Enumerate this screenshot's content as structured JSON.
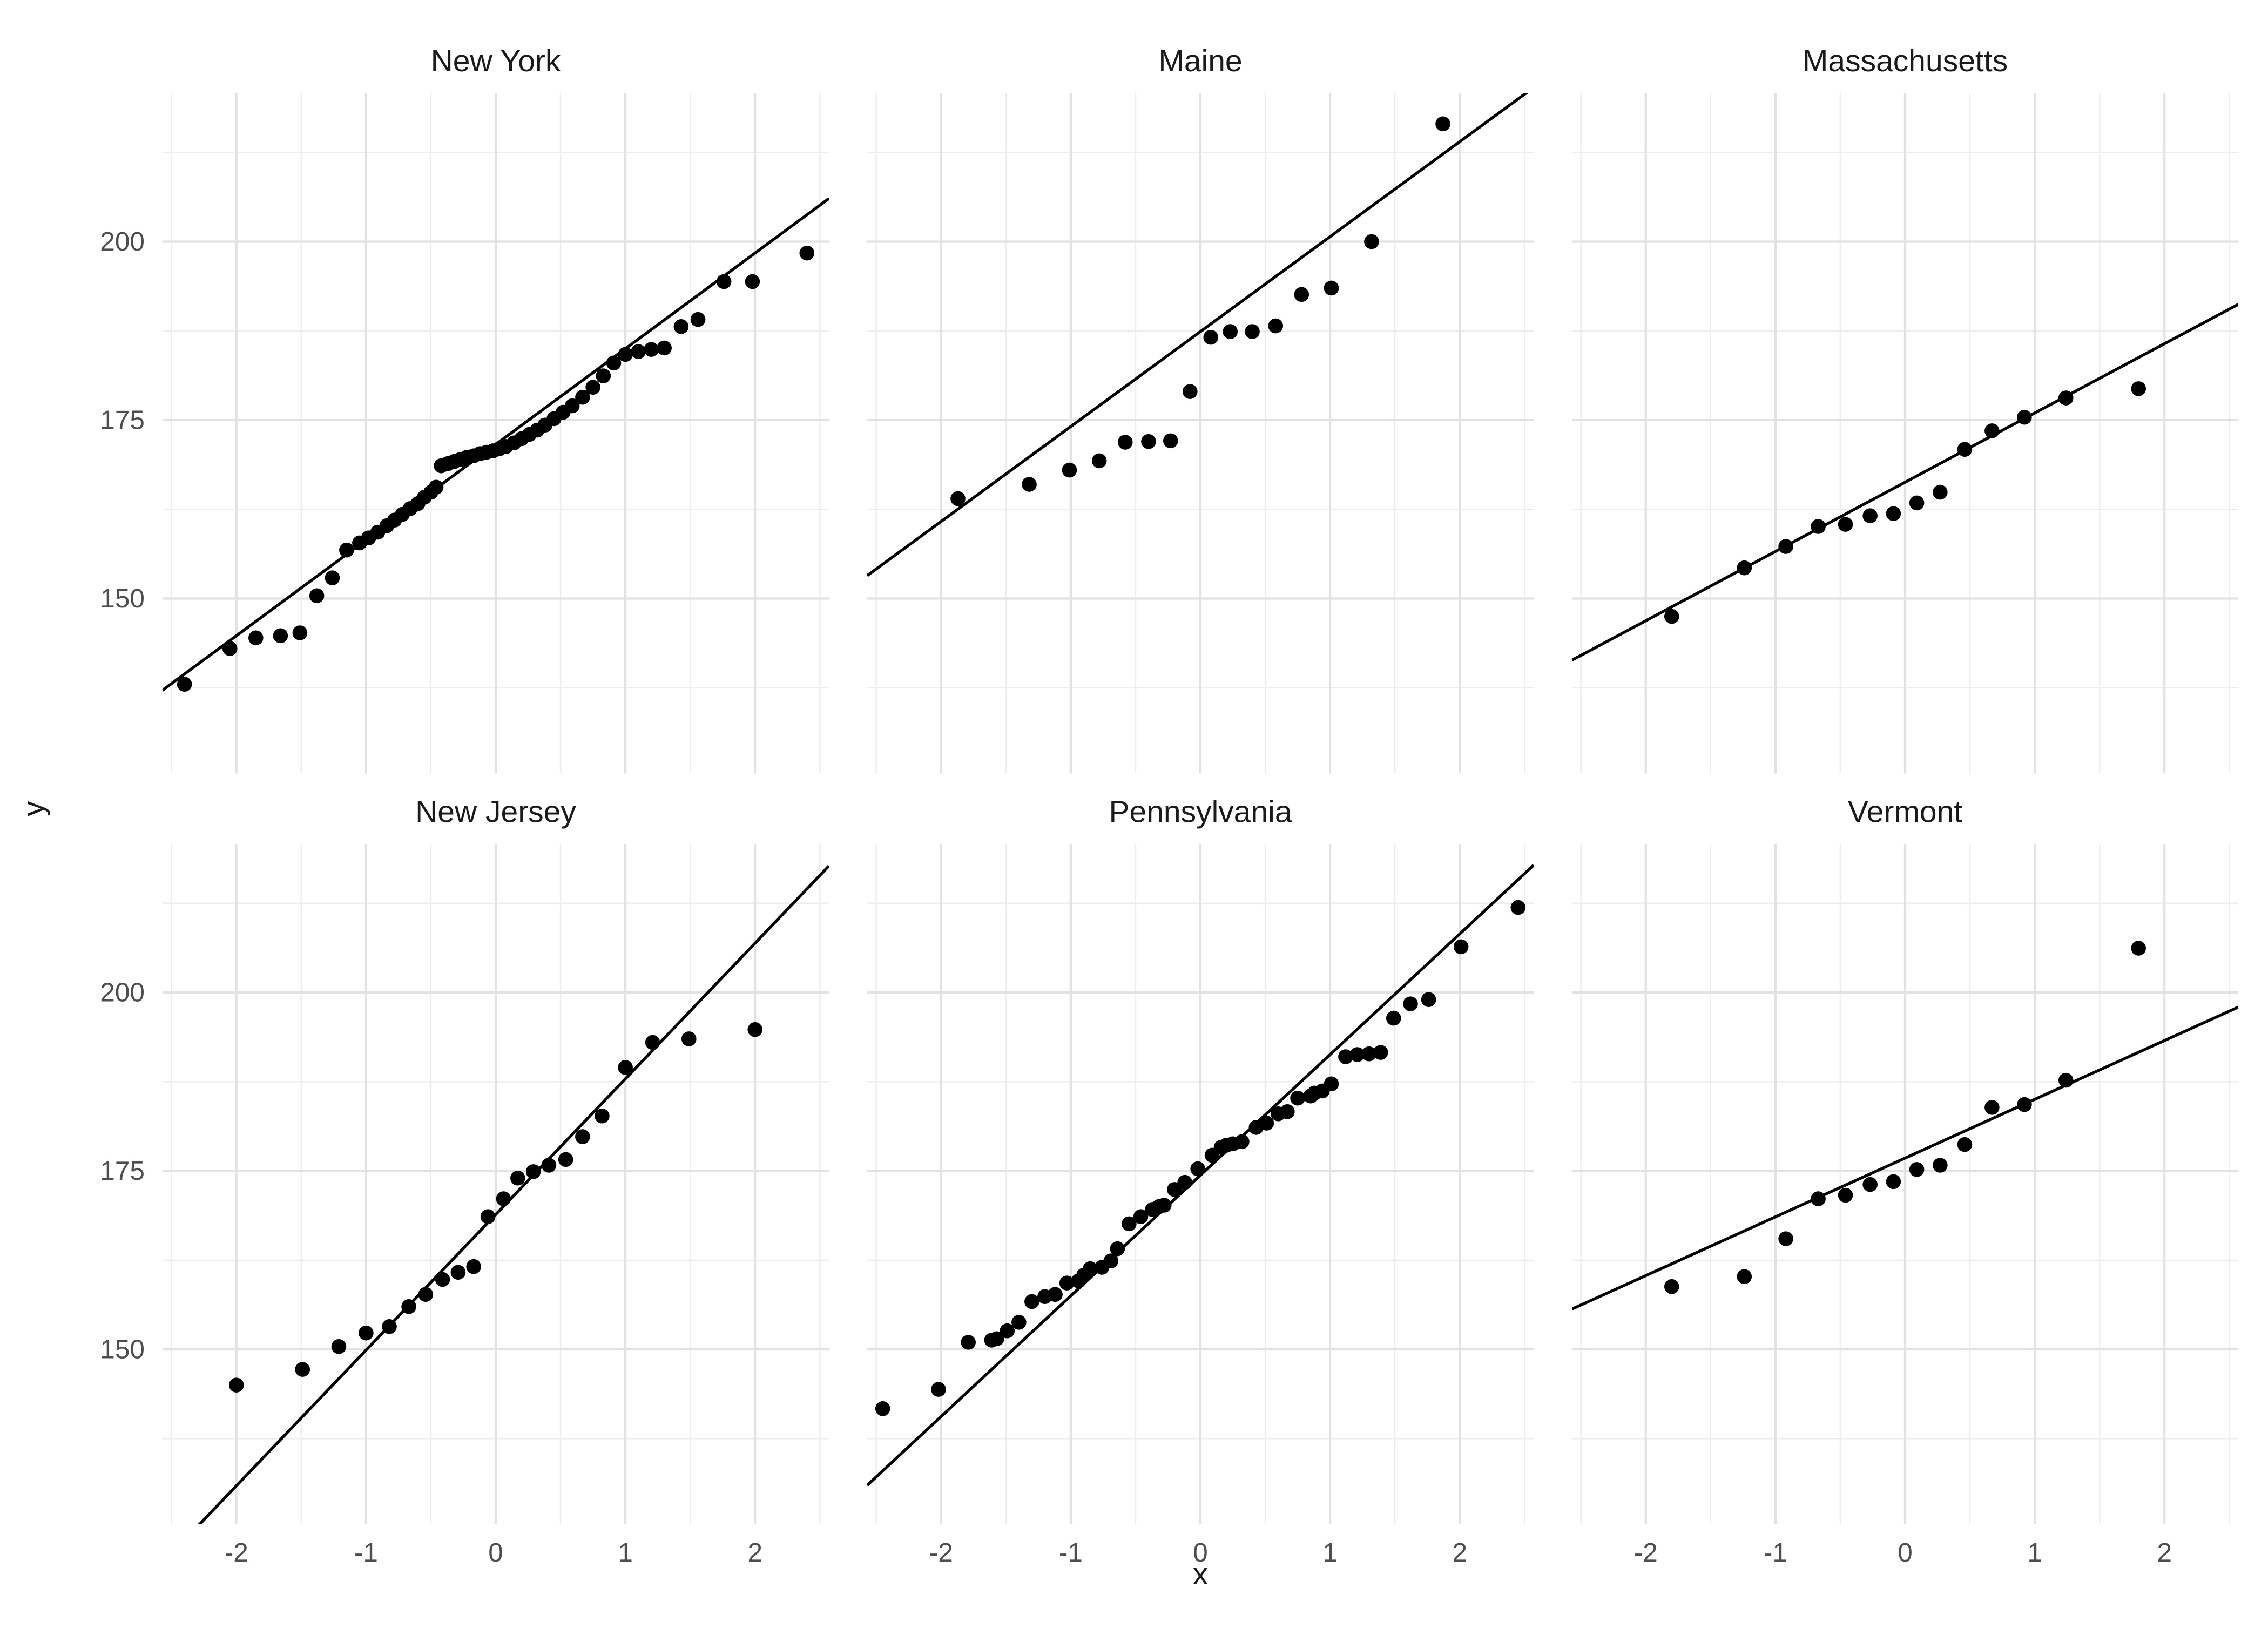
{
  "figure": {
    "background": "#FFFFFF",
    "kind": "faceted QQ scatter plots, 3 columns x 2 rows"
  },
  "axis": {
    "x_label": "x",
    "y_label": "y",
    "x_tick_labels": [
      "-2",
      "-1",
      "0",
      "1",
      "2"
    ],
    "x_ticks": [
      -2,
      -1,
      0,
      1,
      2
    ],
    "x_minor_ticks": [
      -2.5,
      -1.5,
      -0.5,
      0.5,
      1.5,
      2.5
    ],
    "y_tick_labels": [
      "150",
      "175",
      "200"
    ],
    "y_ticks": [
      150,
      175,
      200
    ],
    "y_minor_ticks": [
      137.5,
      162.5,
      187.5,
      212.5
    ],
    "x_domain": [
      -2.57,
      2.57
    ],
    "y_domain": [
      125.5,
      220.8
    ],
    "tick_color": "#4D4D4D",
    "title_color": "#1A1A1A",
    "grid": "on"
  },
  "style": {
    "point_color": "#000000",
    "point_radius": 4.6,
    "line_color": "#000000",
    "line_width": 1.8,
    "grid_major_color": "#E2E2E2",
    "grid_minor_color": "#EDEDED",
    "grid_major_width": 1.4,
    "grid_minor_width": 0.8,
    "panel_bg": "#FFFFFF"
  },
  "chart_data": [
    {
      "type": "scatter",
      "title": "New York",
      "row": 0,
      "col": 0,
      "legend_position": "none",
      "line": {
        "slope": 13.4,
        "intercept": 171.6
      },
      "points": [
        [
          -2.4,
          138.0
        ],
        [
          -2.05,
          143.0
        ],
        [
          -1.85,
          144.5
        ],
        [
          -1.66,
          144.8
        ],
        [
          -1.51,
          145.2
        ],
        [
          -1.38,
          150.4
        ],
        [
          -1.26,
          152.9
        ],
        [
          -1.15,
          156.8
        ],
        [
          -1.05,
          157.8
        ],
        [
          -0.98,
          158.5
        ],
        [
          -0.91,
          159.3
        ],
        [
          -0.84,
          160.2
        ],
        [
          -0.78,
          161.0
        ],
        [
          -0.72,
          161.8
        ],
        [
          -0.66,
          162.6
        ],
        [
          -0.6,
          163.3
        ],
        [
          -0.55,
          164.2
        ],
        [
          -0.5,
          164.9
        ],
        [
          -0.46,
          165.6
        ],
        [
          -0.42,
          168.6
        ],
        [
          -0.37,
          168.9
        ],
        [
          -0.32,
          169.2
        ],
        [
          -0.27,
          169.5
        ],
        [
          -0.22,
          169.8
        ],
        [
          -0.17,
          170.0
        ],
        [
          -0.12,
          170.3
        ],
        [
          -0.07,
          170.5
        ],
        [
          -0.02,
          170.7
        ],
        [
          0.03,
          171.0
        ],
        [
          0.08,
          171.3
        ],
        [
          0.14,
          171.8
        ],
        [
          0.2,
          172.4
        ],
        [
          0.26,
          173.0
        ],
        [
          0.32,
          173.6
        ],
        [
          0.38,
          174.3
        ],
        [
          0.45,
          175.2
        ],
        [
          0.52,
          176.1
        ],
        [
          0.59,
          177.0
        ],
        [
          0.67,
          178.2
        ],
        [
          0.75,
          179.6
        ],
        [
          0.83,
          181.2
        ],
        [
          0.91,
          183.0
        ],
        [
          1.0,
          184.2
        ],
        [
          1.1,
          184.6
        ],
        [
          1.2,
          184.9
        ],
        [
          1.3,
          185.1
        ],
        [
          1.43,
          188.1
        ],
        [
          1.56,
          189.1
        ],
        [
          1.76,
          194.4
        ],
        [
          1.98,
          194.4
        ],
        [
          2.4,
          198.4
        ]
      ]
    },
    {
      "type": "scatter",
      "title": "Maine",
      "row": 0,
      "col": 1,
      "legend_position": "none",
      "line": {
        "slope": 13.3,
        "intercept": 187.4
      },
      "points": [
        [
          -1.87,
          164.0
        ],
        [
          -1.32,
          166.0
        ],
        [
          -1.01,
          168.0
        ],
        [
          -0.78,
          169.3
        ],
        [
          -0.58,
          171.9
        ],
        [
          -0.4,
          172.0
        ],
        [
          -0.23,
          172.1
        ],
        [
          -0.08,
          179.0
        ],
        [
          0.08,
          186.6
        ],
        [
          0.23,
          187.4
        ],
        [
          0.4,
          187.4
        ],
        [
          0.58,
          188.2
        ],
        [
          0.78,
          192.6
        ],
        [
          1.01,
          193.5
        ],
        [
          1.32,
          200.0
        ],
        [
          1.87,
          216.5
        ]
      ]
    },
    {
      "type": "scatter",
      "title": "Massachusetts",
      "row": 0,
      "col": 2,
      "legend_position": "none",
      "line": {
        "slope": 9.7,
        "intercept": 166.3
      },
      "points": [
        [
          -1.8,
          147.5
        ],
        [
          -1.24,
          154.3
        ],
        [
          -0.92,
          157.3
        ],
        [
          -0.67,
          160.1
        ],
        [
          -0.46,
          160.4
        ],
        [
          -0.27,
          161.6
        ],
        [
          -0.09,
          161.9
        ],
        [
          0.09,
          163.4
        ],
        [
          0.27,
          164.9
        ],
        [
          0.46,
          170.9
        ],
        [
          0.67,
          173.5
        ],
        [
          0.92,
          175.4
        ],
        [
          1.24,
          178.1
        ],
        [
          1.8,
          179.4
        ]
      ]
    },
    {
      "type": "scatter",
      "title": "New Jersey",
      "row": 1,
      "col": 0,
      "legend_position": "none",
      "line": {
        "slope": 19.0,
        "intercept": 168.9
      },
      "points": [
        [
          -2.0,
          145.0
        ],
        [
          -1.49,
          147.2
        ],
        [
          -1.21,
          150.4
        ],
        [
          -1.0,
          152.3
        ],
        [
          -0.82,
          153.2
        ],
        [
          -0.67,
          156.0
        ],
        [
          -0.54,
          157.7
        ],
        [
          -0.41,
          159.8
        ],
        [
          -0.29,
          160.8
        ],
        [
          -0.17,
          161.6
        ],
        [
          -0.06,
          168.6
        ],
        [
          0.06,
          171.1
        ],
        [
          0.17,
          174.0
        ],
        [
          0.29,
          174.9
        ],
        [
          0.41,
          175.8
        ],
        [
          0.54,
          176.6
        ],
        [
          0.67,
          179.8
        ],
        [
          0.82,
          182.7
        ],
        [
          1.0,
          189.5
        ],
        [
          1.21,
          193.0
        ],
        [
          1.49,
          193.5
        ],
        [
          2.0,
          194.8
        ]
      ]
    },
    {
      "type": "scatter",
      "title": "Pennsylvania",
      "row": 1,
      "col": 1,
      "legend_position": "none",
      "line": {
        "slope": 16.9,
        "intercept": 174.4
      },
      "points": [
        [
          -2.45,
          141.7
        ],
        [
          -2.02,
          144.4
        ],
        [
          -1.79,
          151.0
        ],
        [
          -1.61,
          151.3
        ],
        [
          -1.57,
          151.5
        ],
        [
          -1.49,
          152.6
        ],
        [
          -1.4,
          153.8
        ],
        [
          -1.3,
          156.7
        ],
        [
          -1.2,
          157.4
        ],
        [
          -1.12,
          157.7
        ],
        [
          -1.03,
          159.3
        ],
        [
          -0.94,
          159.6
        ],
        [
          -0.9,
          160.4
        ],
        [
          -0.85,
          161.3
        ],
        [
          -0.76,
          161.5
        ],
        [
          -0.69,
          162.4
        ],
        [
          -0.64,
          164.1
        ],
        [
          -0.55,
          167.6
        ],
        [
          -0.46,
          168.6
        ],
        [
          -0.37,
          169.6
        ],
        [
          -0.32,
          170.0
        ],
        [
          -0.28,
          170.2
        ],
        [
          -0.2,
          172.4
        ],
        [
          -0.12,
          173.4
        ],
        [
          -0.02,
          175.3
        ],
        [
          0.09,
          177.2
        ],
        [
          0.16,
          178.3
        ],
        [
          0.2,
          178.6
        ],
        [
          0.25,
          178.8
        ],
        [
          0.32,
          179.1
        ],
        [
          0.43,
          181.1
        ],
        [
          0.51,
          181.7
        ],
        [
          0.6,
          183.0
        ],
        [
          0.67,
          183.3
        ],
        [
          0.75,
          185.2
        ],
        [
          0.85,
          185.5
        ],
        [
          0.88,
          185.9
        ],
        [
          0.94,
          186.2
        ],
        [
          1.01,
          187.2
        ],
        [
          1.12,
          191.0
        ],
        [
          1.21,
          191.3
        ],
        [
          1.3,
          191.4
        ],
        [
          1.39,
          191.6
        ],
        [
          1.49,
          196.4
        ],
        [
          1.62,
          198.4
        ],
        [
          1.76,
          199.0
        ],
        [
          2.01,
          206.4
        ],
        [
          2.45,
          211.9
        ]
      ]
    },
    {
      "type": "scatter",
      "title": "Vermont",
      "row": 1,
      "col": 2,
      "legend_position": "none",
      "line": {
        "slope": 8.23,
        "intercept": 176.8
      },
      "points": [
        [
          -1.8,
          158.8
        ],
        [
          -1.24,
          160.2
        ],
        [
          -0.92,
          165.5
        ],
        [
          -0.67,
          171.1
        ],
        [
          -0.46,
          171.6
        ],
        [
          -0.27,
          173.1
        ],
        [
          -0.09,
          173.5
        ],
        [
          0.09,
          175.2
        ],
        [
          0.27,
          175.8
        ],
        [
          0.46,
          178.7
        ],
        [
          0.67,
          183.9
        ],
        [
          0.92,
          184.3
        ],
        [
          1.24,
          187.7
        ],
        [
          1.8,
          206.2
        ]
      ]
    }
  ]
}
